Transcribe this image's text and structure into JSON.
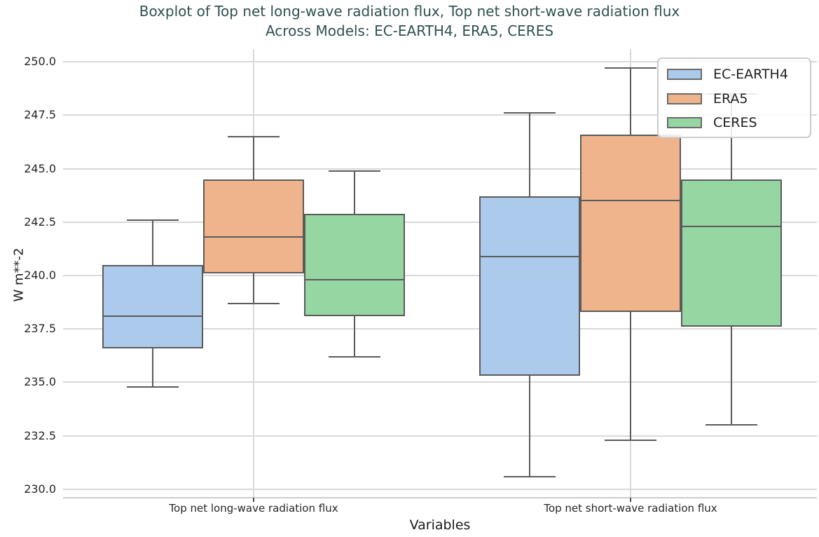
{
  "title": {
    "line1": "Boxplot of Top net long-wave radiation flux, Top net short-wave radiation flux",
    "line2": "Across Models: EC-EARTH4, ERA5, CERES",
    "color": "#2f5050"
  },
  "chart_data": {
    "type": "boxplot",
    "title": "Boxplot of Top net long-wave radiation flux, Top net short-wave radiation flux Across Models: EC-EARTH4, ERA5, CERES",
    "xlabel": "Variables",
    "ylabel": "W m**-2",
    "categories": [
      "Top net long-wave radiation flux",
      "Top net short-wave radiation flux"
    ],
    "yticks": [
      "230.0",
      "232.5",
      "235.0",
      "237.5",
      "240.0",
      "242.5",
      "245.0",
      "247.5",
      "250.0"
    ],
    "ylim": [
      229.6,
      250.6
    ],
    "grid": true,
    "legend_position": "upper right",
    "line_color": "#5b5b5b",
    "grid_color": "#d9d9d9",
    "series": [
      {
        "name": "EC-EARTH4",
        "color": "#accbec",
        "boxes": [
          {
            "whislo": 234.8,
            "q1": 236.6,
            "med": 238.1,
            "q3": 240.5,
            "whishi": 242.6
          },
          {
            "whislo": 230.6,
            "q1": 235.3,
            "med": 240.9,
            "q3": 243.7,
            "whishi": 247.6
          }
        ]
      },
      {
        "name": "ERA5",
        "color": "#f0b48d",
        "boxes": [
          {
            "whislo": 238.7,
            "q1": 240.1,
            "med": 241.8,
            "q3": 244.5,
            "whishi": 246.5
          },
          {
            "whislo": 232.3,
            "q1": 238.3,
            "med": 243.5,
            "q3": 246.6,
            "whishi": 249.7
          }
        ]
      },
      {
        "name": "CERES",
        "color": "#95d6a3",
        "boxes": [
          {
            "whislo": 236.2,
            "q1": 238.1,
            "med": 239.8,
            "q3": 242.9,
            "whishi": 244.9
          },
          {
            "whislo": 233.0,
            "q1": 237.6,
            "med": 242.3,
            "q3": 244.5,
            "whishi": 248.5
          }
        ]
      }
    ]
  }
}
